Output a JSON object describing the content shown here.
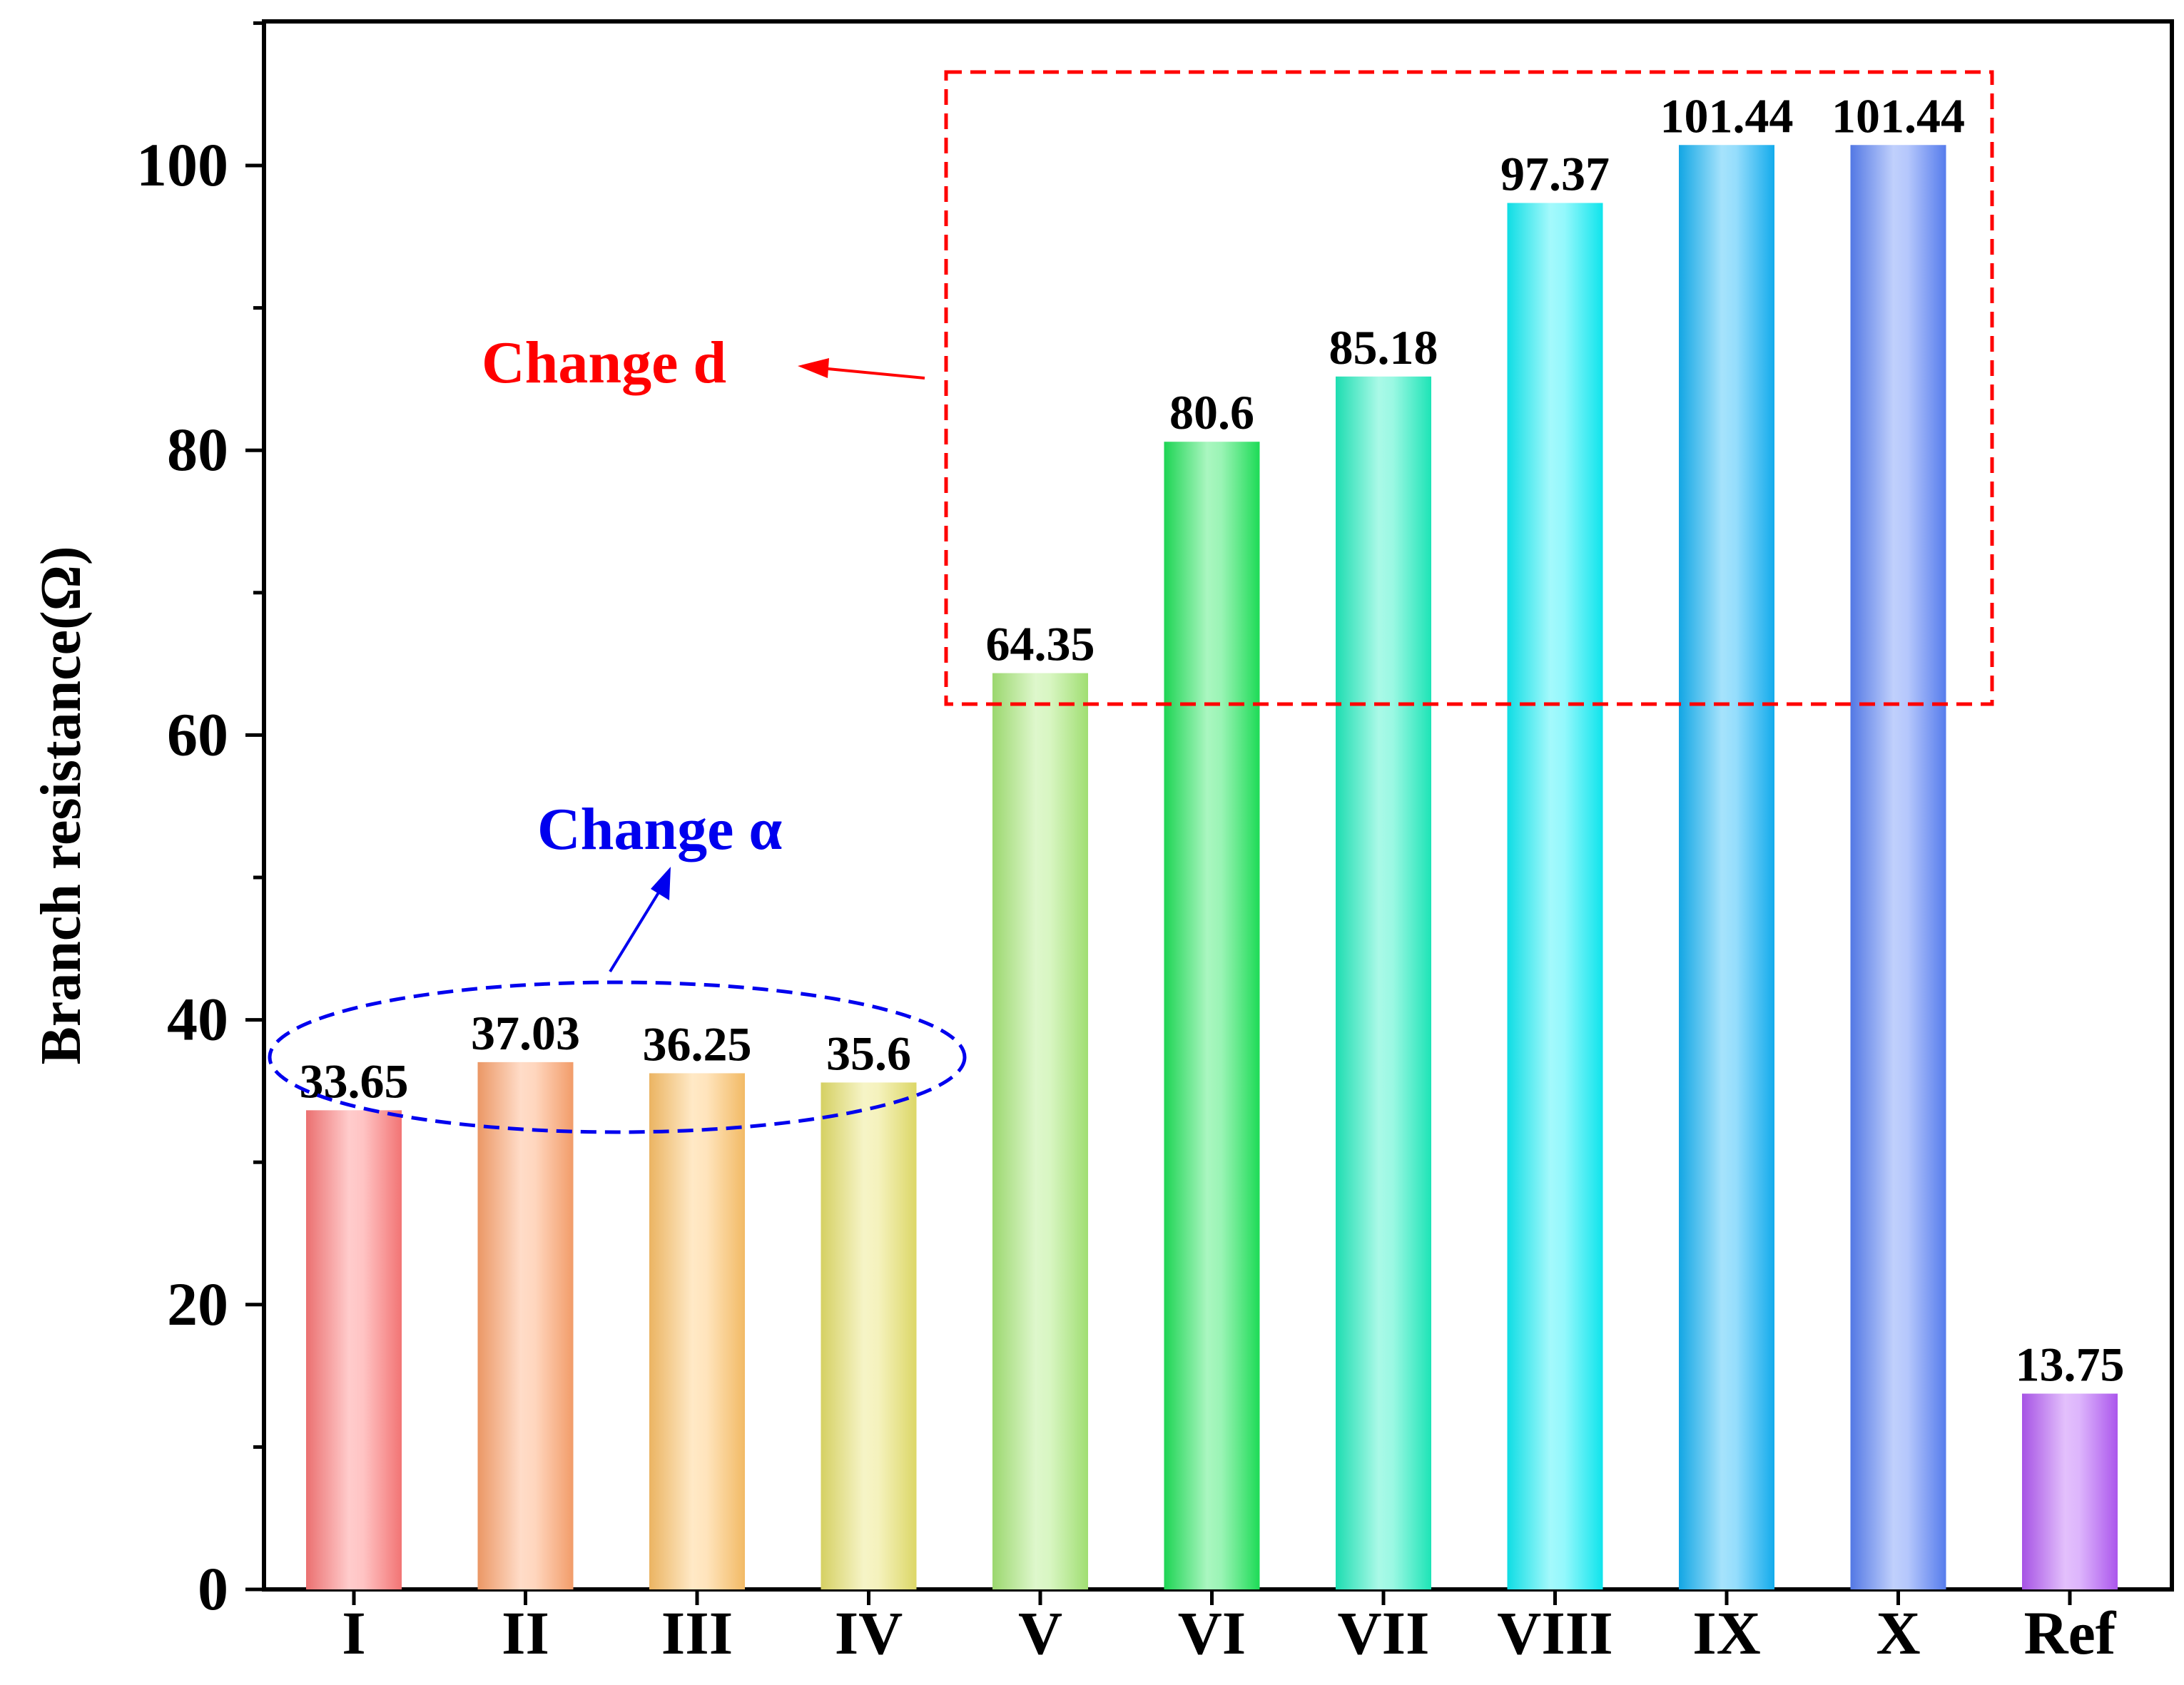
{
  "chart_data": {
    "type": "bar",
    "categories": [
      "I",
      "II",
      "III",
      "IV",
      "V",
      "VI",
      "VII",
      "VIII",
      "IX",
      "X",
      "Ref"
    ],
    "values": [
      33.65,
      37.03,
      36.25,
      35.6,
      64.35,
      80.6,
      85.18,
      97.37,
      101.44,
      101.44,
      13.75
    ],
    "value_labels": [
      "33.65",
      "37.03",
      "36.25",
      "35.6",
      "64.35",
      "80.6",
      "85.18",
      "97.37",
      "101.44",
      "101.44",
      "13.75"
    ],
    "colors": [
      "#ff7a7a",
      "#ffa46e",
      "#ffc46a",
      "#e8e26c",
      "#a8ea78",
      "#1fe65a",
      "#1ff0c0",
      "#10f0f8",
      "#14b4f8",
      "#5a82f8",
      "#b45af8"
    ],
    "title": "",
    "xlabel": "",
    "ylabel": "Branch resistance(Ω)",
    "ylim": [
      0,
      110
    ],
    "yticks": [
      0,
      20,
      40,
      60,
      80,
      100
    ],
    "ytick_labels": [
      "0",
      "20",
      "40",
      "60",
      "80",
      "100"
    ],
    "grid": false,
    "annotations": {
      "change_d": {
        "text": "Change d",
        "color": "#ff0000",
        "groups": [
          "VI",
          "VII",
          "VIII",
          "IX",
          "X"
        ]
      },
      "change_alpha": {
        "text": "Change α",
        "color": "#0000ee",
        "groups": [
          "I",
          "II",
          "III",
          "IV"
        ]
      }
    }
  }
}
